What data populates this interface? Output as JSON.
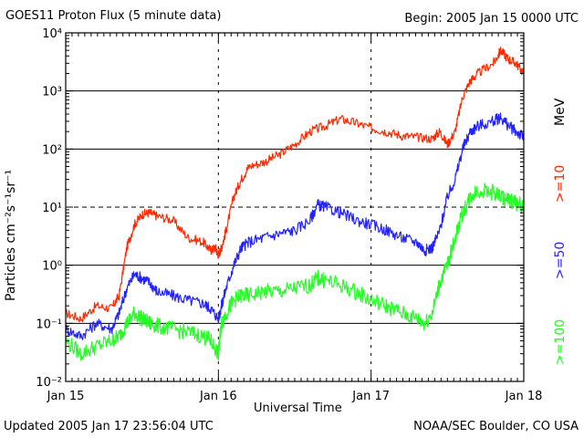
{
  "header": {
    "title": "GOES11 Proton Flux (5 minute data)",
    "begin": "Begin: 2005 Jan 15 0000 UTC"
  },
  "footer": {
    "updated": "Updated 2005 Jan 17 23:56:04 UTC",
    "source": "NOAA/SEC Boulder, CO USA"
  },
  "chart_data": {
    "type": "line",
    "title": "GOES11 Proton Flux (5 minute data)",
    "xlabel": "Universal Time",
    "ylabel": "Particles cm⁻²s⁻¹sr⁻¹",
    "unit_label": "MeV",
    "x_ticks": [
      "Jan 15",
      "Jan 16",
      "Jan 17",
      "Jan 18"
    ],
    "xlim_days": [
      0,
      3
    ],
    "yscale": "log",
    "ylim": [
      0.01,
      10000
    ],
    "y_tick_labels": [
      "10⁻²",
      "10⁻¹",
      "10⁰",
      "10¹",
      "10²",
      "10³",
      "10⁴"
    ],
    "dashed_reference": 10,
    "legend_placement": "right (vertical text)",
    "series": [
      {
        "name": ">=10",
        "color": "#ff2a00",
        "points": [
          [
            0,
            0.15
          ],
          [
            0.1,
            0.12
          ],
          [
            0.2,
            0.2
          ],
          [
            0.3,
            0.18
          ],
          [
            0.35,
            0.3
          ],
          [
            0.4,
            2
          ],
          [
            0.45,
            5
          ],
          [
            0.5,
            7.5
          ],
          [
            0.55,
            8
          ],
          [
            0.6,
            7
          ],
          [
            0.7,
            6
          ],
          [
            0.8,
            3
          ],
          [
            0.9,
            2.5
          ],
          [
            0.95,
            1.8
          ],
          [
            0.98,
            2
          ],
          [
            1.0,
            1.5
          ],
          [
            1.02,
            2
          ],
          [
            1.05,
            4
          ],
          [
            1.1,
            15
          ],
          [
            1.15,
            30
          ],
          [
            1.2,
            50
          ],
          [
            1.3,
            60
          ],
          [
            1.4,
            80
          ],
          [
            1.5,
            120
          ],
          [
            1.6,
            200
          ],
          [
            1.7,
            250
          ],
          [
            1.8,
            330
          ],
          [
            1.9,
            280
          ],
          [
            2.0,
            230
          ],
          [
            2.1,
            200
          ],
          [
            2.2,
            170
          ],
          [
            2.3,
            160
          ],
          [
            2.4,
            150
          ],
          [
            2.45,
            200
          ],
          [
            2.5,
            120
          ],
          [
            2.55,
            200
          ],
          [
            2.6,
            800
          ],
          [
            2.65,
            1500
          ],
          [
            2.7,
            2000
          ],
          [
            2.8,
            3000
          ],
          [
            2.85,
            5000
          ],
          [
            2.9,
            3500
          ],
          [
            2.95,
            3000
          ],
          [
            3.0,
            2000
          ]
        ]
      },
      {
        "name": ">=50",
        "color": "#2222ff",
        "points": [
          [
            0,
            0.08
          ],
          [
            0.1,
            0.06
          ],
          [
            0.2,
            0.1
          ],
          [
            0.3,
            0.08
          ],
          [
            0.35,
            0.15
          ],
          [
            0.4,
            0.4
          ],
          [
            0.45,
            0.7
          ],
          [
            0.5,
            0.6
          ],
          [
            0.55,
            0.5
          ],
          [
            0.6,
            0.35
          ],
          [
            0.7,
            0.3
          ],
          [
            0.8,
            0.25
          ],
          [
            0.9,
            0.22
          ],
          [
            0.95,
            0.18
          ],
          [
            1.0,
            0.12
          ],
          [
            1.02,
            0.2
          ],
          [
            1.05,
            0.4
          ],
          [
            1.1,
            1
          ],
          [
            1.15,
            2
          ],
          [
            1.2,
            2.5
          ],
          [
            1.3,
            3
          ],
          [
            1.4,
            3.5
          ],
          [
            1.5,
            4
          ],
          [
            1.6,
            6
          ],
          [
            1.65,
            11
          ],
          [
            1.7,
            10
          ],
          [
            1.8,
            8
          ],
          [
            1.9,
            6
          ],
          [
            2.0,
            5
          ],
          [
            2.1,
            4
          ],
          [
            2.2,
            3
          ],
          [
            2.3,
            2.5
          ],
          [
            2.35,
            1.8
          ],
          [
            2.4,
            2
          ],
          [
            2.45,
            4
          ],
          [
            2.5,
            15
          ],
          [
            2.55,
            30
          ],
          [
            2.6,
            100
          ],
          [
            2.65,
            200
          ],
          [
            2.7,
            250
          ],
          [
            2.8,
            300
          ],
          [
            2.85,
            350
          ],
          [
            2.9,
            250
          ],
          [
            2.95,
            200
          ],
          [
            3.0,
            160
          ]
        ]
      },
      {
        "name": ">=100",
        "color": "#22ff22",
        "points": [
          [
            0,
            0.05
          ],
          [
            0.1,
            0.03
          ],
          [
            0.2,
            0.04
          ],
          [
            0.3,
            0.05
          ],
          [
            0.35,
            0.06
          ],
          [
            0.4,
            0.1
          ],
          [
            0.45,
            0.15
          ],
          [
            0.5,
            0.12
          ],
          [
            0.55,
            0.1
          ],
          [
            0.6,
            0.09
          ],
          [
            0.7,
            0.08
          ],
          [
            0.8,
            0.07
          ],
          [
            0.9,
            0.06
          ],
          [
            0.95,
            0.05
          ],
          [
            1.0,
            0.03
          ],
          [
            1.02,
            0.1
          ],
          [
            1.05,
            0.15
          ],
          [
            1.1,
            0.25
          ],
          [
            1.15,
            0.3
          ],
          [
            1.2,
            0.3
          ],
          [
            1.3,
            0.35
          ],
          [
            1.4,
            0.35
          ],
          [
            1.5,
            0.4
          ],
          [
            1.6,
            0.45
          ],
          [
            1.65,
            0.6
          ],
          [
            1.7,
            0.55
          ],
          [
            1.8,
            0.45
          ],
          [
            1.9,
            0.35
          ],
          [
            2.0,
            0.25
          ],
          [
            2.1,
            0.2
          ],
          [
            2.2,
            0.15
          ],
          [
            2.3,
            0.12
          ],
          [
            2.35,
            0.1
          ],
          [
            2.4,
            0.15
          ],
          [
            2.45,
            0.5
          ],
          [
            2.5,
            1
          ],
          [
            2.55,
            3
          ],
          [
            2.6,
            8
          ],
          [
            2.65,
            15
          ],
          [
            2.7,
            20
          ],
          [
            2.8,
            18
          ],
          [
            2.85,
            15
          ],
          [
            2.9,
            13
          ],
          [
            2.95,
            12
          ],
          [
            3.0,
            10
          ]
        ]
      }
    ]
  }
}
